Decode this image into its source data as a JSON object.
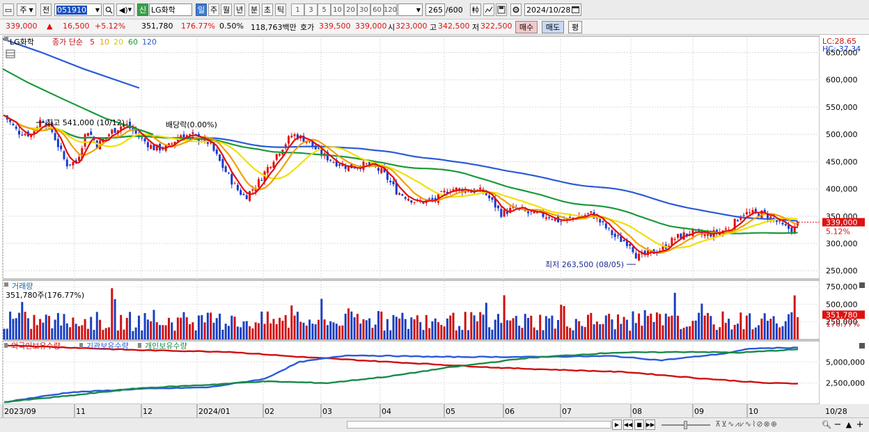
{
  "toolbar": {
    "period_label": "주",
    "prev_label": "전",
    "code_value": "051910",
    "stock_name": "LG화학",
    "new_badge": "신",
    "period_day": "일",
    "period_week": "주",
    "period_month": "월",
    "period_year": "년",
    "period_minute": "분",
    "period_second": "초",
    "period_tick": "틱",
    "intervals": [
      "1",
      "3",
      "5",
      "10",
      "20",
      "30",
      "60",
      "120"
    ],
    "count_value": "265",
    "count_total": "/600",
    "date_value": "2024/10/28"
  },
  "quote": {
    "price": "339,000",
    "change_arrow": "▲",
    "change": "16,500",
    "change_pct": "+5.12%",
    "volume": "351,780",
    "volume_ratio": "176.77%",
    "turnover": "0.50%",
    "amount": "118,763백만",
    "ask_label": "호가",
    "ask": "339,500",
    "bid": "339,000",
    "open_label": "시",
    "open": "323,000",
    "high_label": "고",
    "high": "342,500",
    "low_label": "저",
    "low": "322,500",
    "buy_button": "매수",
    "sell_button": "매도",
    "eval_button": "평"
  },
  "price_panel": {
    "name": "LG화학",
    "ma_label": "종가 단순",
    "ma_periods": [
      "5",
      "10",
      "20",
      "60",
      "120"
    ],
    "ma_colors": [
      "#e01010",
      "#f0a000",
      "#f0e000",
      "#1a9a3a",
      "#2a5ad8"
    ],
    "lc": "LC:28.65",
    "hc": "HC:-37.34",
    "high_annotation": "최고 541,000 (10/12)",
    "dividend_annotation": "배당락(0.00%)",
    "low_annotation": "최저 263,500 (08/05)",
    "current_price_tag": "339,000",
    "current_change_tag": "5.12%",
    "y_ticks": [
      "650,000",
      "600,000",
      "550,000",
      "500,000",
      "450,000",
      "400,000",
      "350,000",
      "300,000",
      "250,000"
    ]
  },
  "volume_panel": {
    "title": "거래량",
    "current": "351,780주(176.77%)",
    "y_ticks": [
      "750,000",
      "500,000",
      "250,000"
    ],
    "current_tag": "351,780",
    "current_pct_tag": "176.77%"
  },
  "holdings_panel": {
    "series": [
      {
        "name": "외국인보유수량",
        "color": "#d01010"
      },
      {
        "name": "기관보유수량",
        "color": "#2a5ad8"
      },
      {
        "name": "개인보유수량",
        "color": "#1a8a4a"
      }
    ],
    "y_ticks": [
      "5,000,000",
      "2,500,000"
    ]
  },
  "x_axis": {
    "labels": [
      "2023/09",
      "11",
      "12",
      "2024/01",
      "02",
      "03",
      "04",
      "05",
      "06",
      "07",
      "08",
      "09",
      "10"
    ],
    "end_label": "10/28"
  },
  "chart_data": {
    "type": "candlestick",
    "price_series": {
      "x": [
        "2023-09",
        "2023-10",
        "2023-10-12",
        "2023-11",
        "2023-12",
        "2024-01",
        "2024-02",
        "2024-03",
        "2024-04",
        "2024-05",
        "2024-06",
        "2024-07",
        "2024-08-05",
        "2024-09",
        "2024-10-28"
      ],
      "close": [
        520000,
        500000,
        541000,
        440000,
        480000,
        490000,
        385000,
        500000,
        440000,
        400000,
        360000,
        340000,
        263500,
        310000,
        339000
      ]
    },
    "ylim": [
      235000,
      680000
    ],
    "volume_ylim": [
      0,
      800000
    ],
    "holdings_ylim": [
      0,
      7500000
    ]
  }
}
